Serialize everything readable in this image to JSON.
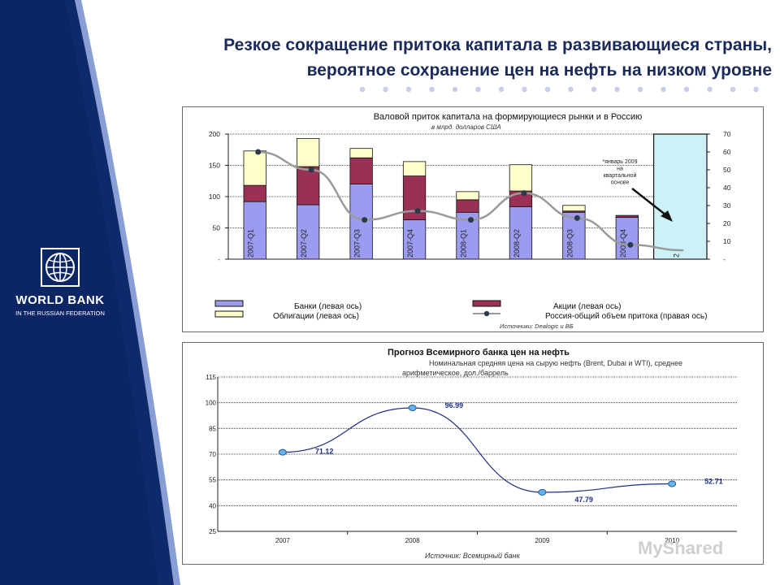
{
  "header": {
    "title_line1": "Резкое сокращение притока капитала в развивающиеся страны,",
    "title_line2": "вероятное сохранение цен на нефть на низком уровне"
  },
  "logo": {
    "name": "WORLD BANK",
    "subtitle": "IN THE RUSSIAN FEDERATION"
  },
  "colors": {
    "navy": "#0f2a6b",
    "title": "#1a2a5a",
    "dots": "#c7cdea"
  },
  "chart_data": [
    {
      "type": "bar",
      "stacked": true,
      "title": "Валовой приток капитала на формирующиеся рынки и в Россию",
      "subtitle": "в млрд. долларов США",
      "categories": [
        "2007-Q1",
        "2007-Q2",
        "2007-Q3",
        "2007-Q4",
        "2008-Q1",
        "2008-Q2",
        "2008-Q3",
        "2008-Q4",
        "2"
      ],
      "series": [
        {
          "name": "Банки (левая ось)",
          "color": "#9b9bf0",
          "values": [
            92,
            87,
            120,
            63,
            75,
            84,
            75,
            67,
            0
          ]
        },
        {
          "name": "Акции (левая ось)",
          "color": "#9b3056",
          "values": [
            26,
            61,
            42,
            70,
            20,
            25,
            2,
            3,
            0
          ]
        },
        {
          "name": "Облигации (левая ось)",
          "color": "#ffffcc",
          "values": [
            55,
            45,
            15,
            23,
            13,
            42,
            9,
            0,
            0
          ]
        }
      ],
      "line_series": {
        "name": "Россия-общий объем притока (правая ось)",
        "color": "#9a9a9a",
        "values": [
          60,
          50,
          22,
          27,
          22,
          37,
          23,
          8,
          5
        ]
      },
      "highlight": {
        "color": "#ccf2f8",
        "value_right": 70
      },
      "y_left": {
        "ticks": [
          "-",
          "50",
          "100",
          "150",
          "200"
        ],
        "range": [
          0,
          200
        ]
      },
      "y_right": {
        "ticks": [
          "-",
          "10",
          "20",
          "30",
          "40",
          "50",
          "60",
          "70"
        ],
        "range": [
          0,
          70
        ]
      },
      "annotation": [
        "*январь 2009",
        "на",
        "квартальной",
        "основе"
      ],
      "legend": [
        "Банки (левая ось)",
        "Акции (левая ось)",
        "Облигации (левая ось)",
        "Россия-общий объем притока (правая ось)"
      ],
      "source": "Источники: Dealogic и ВБ"
    },
    {
      "type": "line",
      "title": "Прогноз Всемирного банка цен на нефть",
      "subtitle1": "Номинальная средняя цена на сырую нефть (Brent, Dubai и WTI), среднее",
      "subtitle2": "арифметическое, дол./баррель",
      "x": [
        "2007",
        "2008",
        "2009",
        "2010"
      ],
      "values": [
        71.12,
        96.99,
        47.79,
        52.71
      ],
      "labels": [
        "71.12",
        "96.99",
        "47.79",
        "52.71"
      ],
      "yticks": [
        "25",
        "40",
        "55",
        "70",
        "85",
        "100",
        "115"
      ],
      "ylim": [
        25,
        115
      ],
      "source": "Источник: Всемирный банк",
      "line_color": "#1f2f86",
      "marker_color": "#66b3ee"
    }
  ],
  "watermark": "MyShared"
}
